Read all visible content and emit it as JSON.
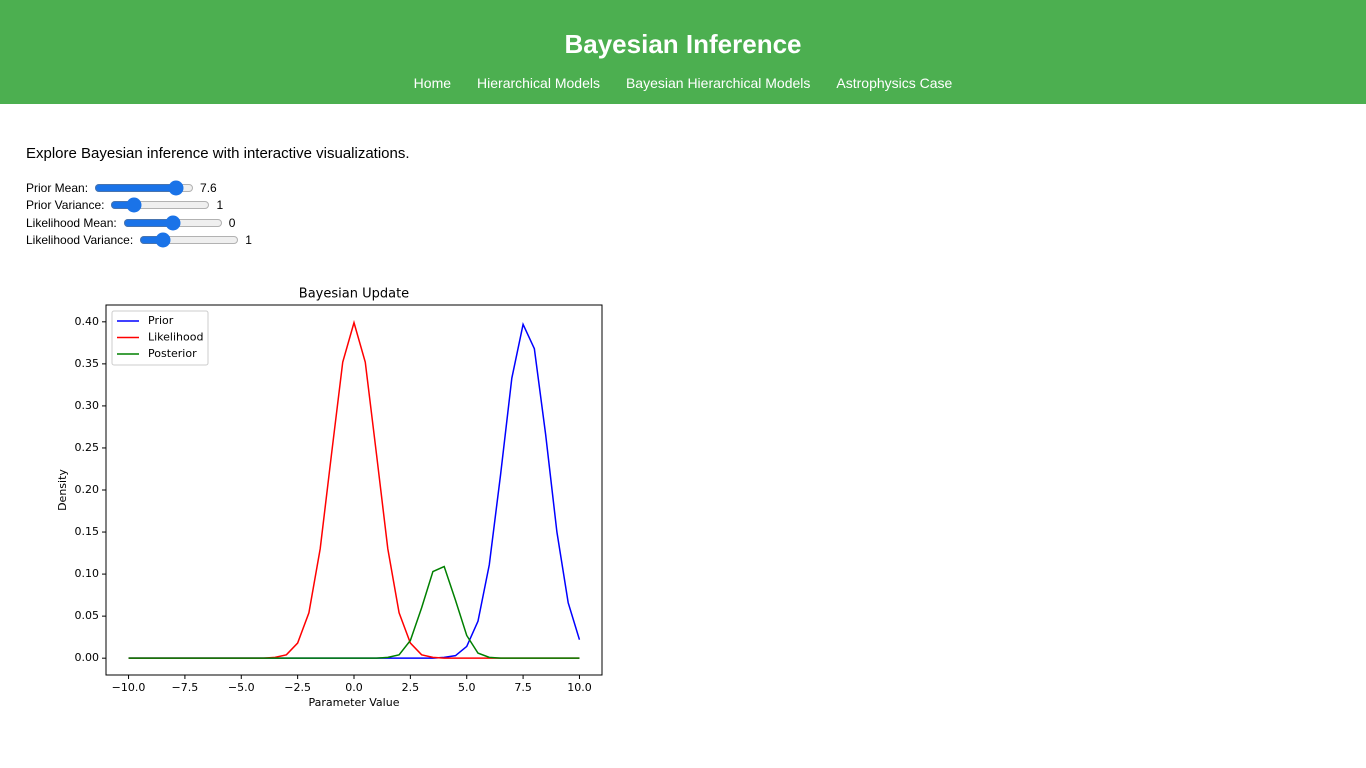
{
  "header": {
    "title": "Bayesian Inference",
    "nav": [
      "Home",
      "Hierarchical Models",
      "Bayesian Hierarchical Models",
      "Astrophysics Case"
    ]
  },
  "intro": "Explore Bayesian inference with interactive visualizations.",
  "controls": [
    {
      "label": "Prior Mean:",
      "value": 7.6
    },
    {
      "label": "Prior Variance:",
      "value": 1
    },
    {
      "label": "Likelihood Mean:",
      "value": 0
    },
    {
      "label": "Likelihood Variance:",
      "value": 1
    }
  ],
  "chart_data": {
    "type": "line",
    "title": "Bayesian Update",
    "x_label": "Parameter Value",
    "y_label": "Density",
    "x": [
      -10,
      -9.5,
      -9,
      -8.5,
      -8,
      -7.5,
      -7,
      -6.5,
      -6,
      -5.5,
      -5,
      -4.5,
      -4,
      -3.5,
      -3,
      -2.5,
      -2,
      -1.5,
      -1,
      -0.5,
      0,
      0.5,
      1,
      1.5,
      2,
      2.5,
      3,
      3.5,
      4,
      4.5,
      5,
      5.5,
      6,
      6.5,
      7,
      7.5,
      8,
      8.5,
      9,
      9.5,
      10
    ],
    "series": [
      {
        "name": "Prior",
        "color": "#0000ff",
        "values": [
          0,
          0,
          0,
          0,
          0,
          0,
          0,
          0,
          0,
          0,
          0,
          0,
          0,
          0,
          0,
          0,
          0,
          0,
          0,
          0,
          0,
          0,
          0,
          0,
          0,
          0,
          0,
          0,
          0.001,
          0.003,
          0.014,
          0.044,
          0.111,
          0.218,
          0.333,
          0.397,
          0.368,
          0.266,
          0.15,
          0.066,
          0.022
        ]
      },
      {
        "name": "Likelihood",
        "color": "#ff0000",
        "values": [
          0,
          0,
          0,
          0,
          0,
          0,
          0,
          0,
          0,
          0,
          0,
          0,
          0,
          0.001,
          0.004,
          0.018,
          0.054,
          0.13,
          0.242,
          0.352,
          0.399,
          0.352,
          0.242,
          0.13,
          0.054,
          0.018,
          0.004,
          0.001,
          0,
          0,
          0,
          0,
          0,
          0,
          0,
          0,
          0,
          0,
          0,
          0,
          0
        ]
      },
      {
        "name": "Posterior",
        "color": "#008000",
        "values": [
          0,
          0,
          0,
          0,
          0,
          0,
          0,
          0,
          0,
          0,
          0,
          0,
          0,
          0,
          0,
          0,
          0,
          0,
          0,
          0,
          0,
          0,
          0,
          0.001,
          0.004,
          0.021,
          0.06,
          0.103,
          0.109,
          0.069,
          0.027,
          0.006,
          0.001,
          0,
          0,
          0,
          0,
          0,
          0,
          0,
          0
        ]
      }
    ],
    "xlim": [
      -11,
      11
    ],
    "ylim": [
      -0.02,
      0.42
    ],
    "xticks": [
      {
        "value": -10,
        "label": "−10.0"
      },
      {
        "value": -7.5,
        "label": "−7.5"
      },
      {
        "value": -5,
        "label": "−5.0"
      },
      {
        "value": -2.5,
        "label": "−2.5"
      },
      {
        "value": 0,
        "label": "0.0"
      },
      2.5,
      {
        "value": 5,
        "label": "5.0"
      },
      7.5,
      {
        "value": 10,
        "label": "10.0"
      }
    ],
    "yticks": [
      {
        "value": 0,
        "label": "0.00"
      },
      {
        "value": 0.05,
        "label": "0.05"
      },
      {
        "value": 0.1,
        "label": "0.10"
      },
      {
        "value": 0.15,
        "label": "0.15"
      },
      {
        "value": 0.2,
        "label": "0.20"
      },
      {
        "value": 0.25,
        "label": "0.25"
      },
      {
        "value": 0.3,
        "label": "0.30"
      },
      {
        "value": 0.35,
        "label": "0.35"
      },
      {
        "value": 0.4,
        "label": "0.40"
      }
    ],
    "legend": "upper left"
  }
}
